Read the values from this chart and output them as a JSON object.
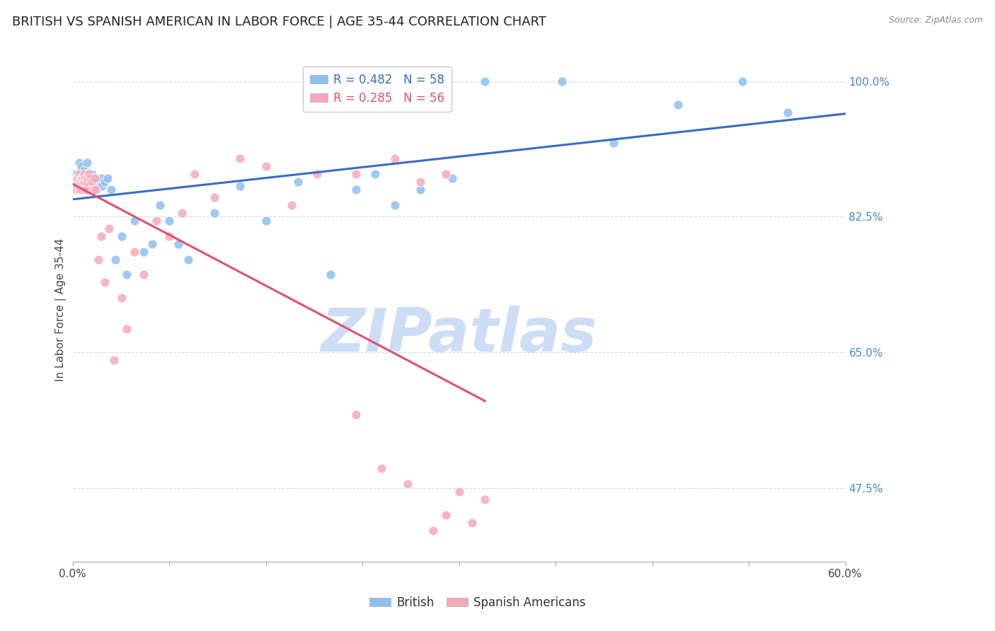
{
  "title": "BRITISH VS SPANISH AMERICAN IN LABOR FORCE | AGE 35-44 CORRELATION CHART",
  "source": "Source: ZipAtlas.com",
  "ylabel": "In Labor Force | Age 35-44",
  "xlim": [
    0.0,
    0.6
  ],
  "ylim": [
    0.38,
    1.03
  ],
  "xticks": [
    0.0,
    0.075,
    0.15,
    0.225,
    0.3,
    0.375,
    0.45,
    0.525,
    0.6
  ],
  "xtick_labels": [
    "0.0%",
    "",
    "",
    "",
    "",
    "",
    "",
    "",
    "60.0%"
  ],
  "yticks_right": [
    1.0,
    0.825,
    0.65,
    0.475
  ],
  "ytick_labels_right": [
    "100.0%",
    "82.5%",
    "65.0%",
    "47.5%"
  ],
  "grid_color": "#d8d8e8",
  "background_color": "#ffffff",
  "british_color": "#8ec0ee",
  "spanish_color": "#f5aabb",
  "british_line_color": "#3a6cc0",
  "spanish_line_color": "#e05070",
  "R_british": 0.482,
  "N_british": 58,
  "R_spanish": 0.285,
  "N_spanish": 56,
  "title_fontsize": 13,
  "axis_label_fontsize": 11,
  "tick_fontsize": 11,
  "legend_fontsize": 12,
  "watermark_color": "#ccddf5",
  "british_x": [
    0.002,
    0.003,
    0.004,
    0.005,
    0.006,
    0.006,
    0.007,
    0.007,
    0.008,
    0.008,
    0.009,
    0.009,
    0.009,
    0.01,
    0.01,
    0.01,
    0.011,
    0.011,
    0.012,
    0.013,
    0.013,
    0.014,
    0.015,
    0.016,
    0.017,
    0.018,
    0.02,
    0.022,
    0.023,
    0.025,
    0.027,
    0.03,
    0.033,
    0.038,
    0.042,
    0.048,
    0.055,
    0.062,
    0.068,
    0.075,
    0.082,
    0.09,
    0.11,
    0.13,
    0.15,
    0.175,
    0.2,
    0.22,
    0.235,
    0.25,
    0.27,
    0.295,
    0.32,
    0.38,
    0.42,
    0.47,
    0.52,
    0.555
  ],
  "british_y": [
    0.875,
    0.88,
    0.87,
    0.895,
    0.86,
    0.885,
    0.875,
    0.89,
    0.88,
    0.86,
    0.87,
    0.885,
    0.875,
    0.87,
    0.88,
    0.86,
    0.895,
    0.875,
    0.87,
    0.86,
    0.88,
    0.875,
    0.88,
    0.87,
    0.865,
    0.875,
    0.87,
    0.875,
    0.865,
    0.87,
    0.875,
    0.86,
    0.77,
    0.8,
    0.75,
    0.82,
    0.78,
    0.79,
    0.84,
    0.82,
    0.79,
    0.77,
    0.83,
    0.865,
    0.82,
    0.87,
    0.75,
    0.86,
    0.88,
    0.84,
    0.86,
    0.875,
    1.0,
    1.0,
    0.92,
    0.97,
    1.0,
    0.96
  ],
  "spanish_x": [
    0.001,
    0.002,
    0.003,
    0.003,
    0.004,
    0.004,
    0.005,
    0.005,
    0.006,
    0.006,
    0.007,
    0.007,
    0.008,
    0.008,
    0.009,
    0.009,
    0.01,
    0.01,
    0.011,
    0.012,
    0.013,
    0.014,
    0.015,
    0.016,
    0.017,
    0.018,
    0.02,
    0.022,
    0.025,
    0.028,
    0.032,
    0.038,
    0.042,
    0.048,
    0.055,
    0.065,
    0.075,
    0.085,
    0.095,
    0.11,
    0.13,
    0.15,
    0.17,
    0.19,
    0.22,
    0.25,
    0.27,
    0.29,
    0.22,
    0.24,
    0.26,
    0.28,
    0.29,
    0.3,
    0.31,
    0.32
  ],
  "spanish_y": [
    0.875,
    0.87,
    0.875,
    0.86,
    0.87,
    0.875,
    0.88,
    0.86,
    0.875,
    0.87,
    0.875,
    0.86,
    0.87,
    0.875,
    0.87,
    0.88,
    0.86,
    0.875,
    0.87,
    0.875,
    0.88,
    0.875,
    0.87,
    0.86,
    0.875,
    0.86,
    0.77,
    0.8,
    0.74,
    0.81,
    0.64,
    0.72,
    0.68,
    0.78,
    0.75,
    0.82,
    0.8,
    0.83,
    0.88,
    0.85,
    0.9,
    0.89,
    0.84,
    0.88,
    0.88,
    0.9,
    0.87,
    0.88,
    0.57,
    0.5,
    0.48,
    0.42,
    0.44,
    0.47,
    0.43,
    0.46
  ]
}
